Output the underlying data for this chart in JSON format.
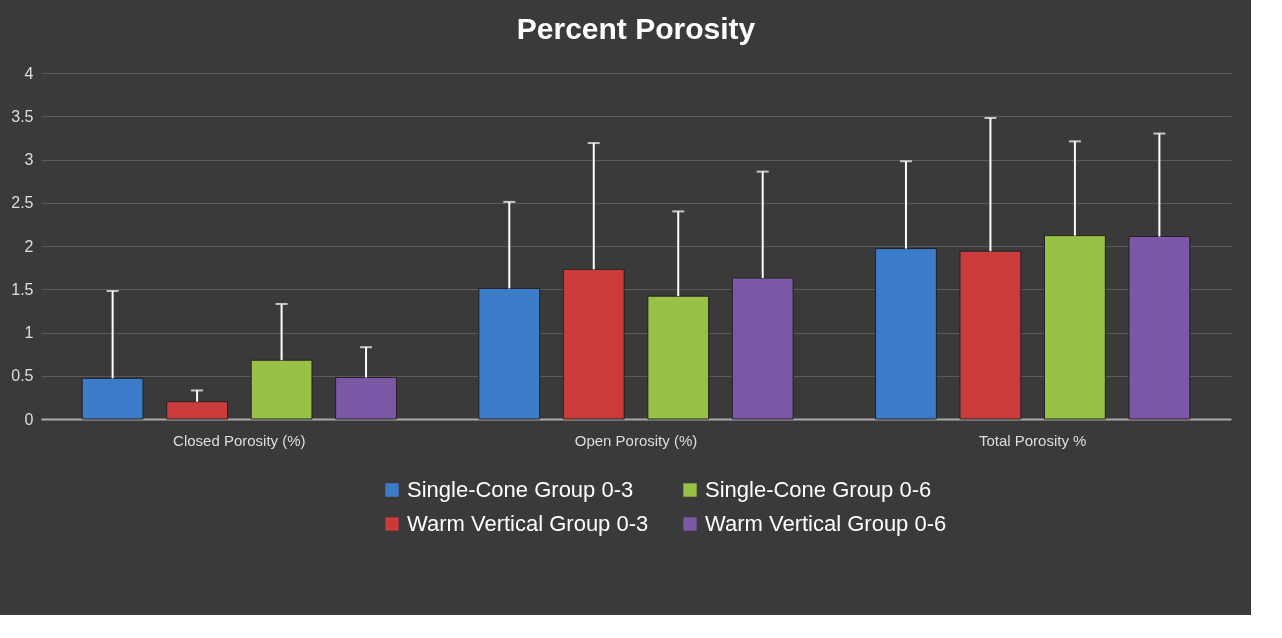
{
  "chart_data": {
    "type": "bar",
    "title": "Percent Porosity",
    "categories": [
      "Closed Porosity (%)",
      "Open Porosity (%)",
      "Total Porosity %"
    ],
    "series": [
      {
        "name": "Single-Cone Group 0-3",
        "color": "#3d7cc9",
        "values": [
          0.47,
          1.51,
          1.97
        ],
        "errors": [
          [
            0.47,
            1.48
          ],
          [
            1.51,
            2.51
          ],
          [
            1.97,
            2.98
          ]
        ]
      },
      {
        "name": "Warm Vertical Group 0-3",
        "color": "#cc3b3b",
        "values": [
          0.2,
          1.73,
          1.94
        ],
        "errors": [
          [
            0.2,
            0.33
          ],
          [
            1.73,
            3.19
          ],
          [
            1.94,
            3.48
          ]
        ]
      },
      {
        "name": "Single-Cone Group 0-6",
        "color": "#97c246",
        "values": [
          0.68,
          1.42,
          2.12
        ],
        "errors": [
          [
            0.68,
            1.33
          ],
          [
            1.42,
            2.4
          ],
          [
            2.12,
            3.21
          ]
        ]
      },
      {
        "name": "Warm Vertical Group 0-6",
        "color": "#7b58a6",
        "values": [
          0.48,
          1.63,
          2.11
        ],
        "errors": [
          [
            0.48,
            0.83
          ],
          [
            1.63,
            2.86
          ],
          [
            2.11,
            3.3
          ]
        ]
      }
    ],
    "ylim": [
      0,
      4
    ],
    "yticks": [
      0,
      0.5,
      1,
      1.5,
      2,
      2.5,
      3,
      3.5,
      4
    ],
    "grid": "y",
    "legend": "bottom"
  }
}
